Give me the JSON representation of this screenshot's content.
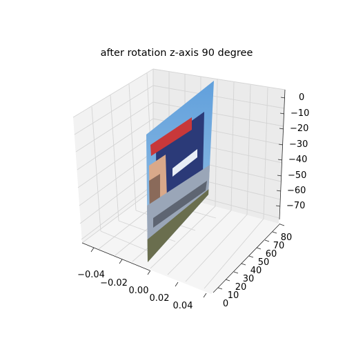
{
  "chart_data": {
    "type": "surface-3d",
    "title": "after rotation z-axis 90 degree",
    "x_axis": {
      "ticks": [
        -0.04,
        -0.02,
        0.0,
        0.02,
        0.04
      ],
      "tick_labels": [
        "−0.04",
        "−0.02",
        "0.00",
        "0.02",
        "0.04"
      ]
    },
    "y_axis": {
      "ticks": [
        0,
        10,
        20,
        30,
        40,
        50,
        60,
        70,
        80
      ],
      "tick_labels": [
        "0",
        "10",
        "20",
        "30",
        "40",
        "50",
        "60",
        "70",
        "80"
      ]
    },
    "z_axis": {
      "ticks": [
        0,
        -10,
        -20,
        -30,
        -40,
        -50,
        -60,
        -70
      ],
      "tick_labels": [
        "0",
        "−10",
        "−20",
        "−30",
        "−40",
        "−50",
        "−60",
        "−70"
      ]
    },
    "surface": {
      "x_value": 0.0,
      "y_range": [
        0,
        80
      ],
      "z_range": [
        -80,
        0
      ],
      "content": "photo texture mapped onto vertical plane"
    },
    "colors": {
      "sky": "#6fa3d8",
      "billboard_red": "#c8383a",
      "billboard_blue": "#2b3a78",
      "wall": "#9aa6b8",
      "ground": "#6a6e4e"
    }
  }
}
